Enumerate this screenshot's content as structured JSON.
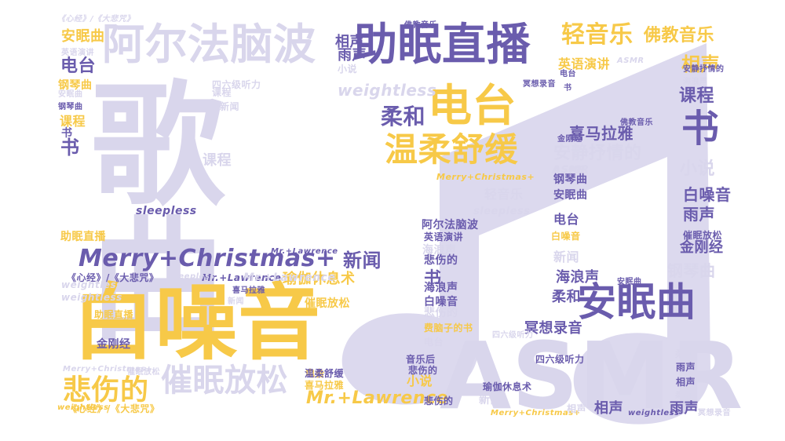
{
  "palette": {
    "purple": "#6a5cad",
    "yellow": "#f7c948",
    "lavender": "#d9d6ec",
    "note": "#dcd9ee"
  },
  "background_icon": "music-note-icon",
  "words": [
    {
      "t": "歌曲",
      "c": "lavender"
    },
    {
      "t": "白噪音",
      "c": "yellow"
    },
    {
      "t": "ASMR",
      "c": "lavender"
    },
    {
      "t": "助眠直播",
      "c": "purple"
    },
    {
      "t": "阿尔法脑波",
      "c": "lavender"
    },
    {
      "t": "电台",
      "c": "yellow"
    },
    {
      "t": "温柔舒缓",
      "c": "yellow"
    },
    {
      "t": "安眠曲",
      "c": "purple"
    },
    {
      "t": "Merry+Christmas+",
      "c": "purple"
    },
    {
      "t": "催眠放松",
      "c": "lavender"
    },
    {
      "t": "悲伤的",
      "c": "yellow"
    },
    {
      "t": "轻音乐",
      "c": "yellow"
    },
    {
      "t": "佛教音乐",
      "c": "yellow"
    },
    {
      "t": "柔和",
      "c": "purple"
    },
    {
      "t": "书",
      "c": "purple"
    },
    {
      "t": "相声",
      "c": "yellow"
    },
    {
      "t": "课程",
      "c": "purple"
    },
    {
      "t": "Mr.+Lawrence",
      "c": "yellow"
    },
    {
      "t": "新闻",
      "c": "purple"
    },
    {
      "t": "安静抒情的",
      "c": "lavender"
    },
    {
      "t": "喜马拉雅",
      "c": "purple"
    },
    {
      "t": "小说",
      "c": "lavender"
    },
    {
      "t": "白噪音",
      "c": "purple"
    },
    {
      "t": "雨声",
      "c": "purple"
    },
    {
      "t": "金刚经",
      "c": "purple"
    },
    {
      "t": "钢琴曲",
      "c": "lavender"
    },
    {
      "t": "weightless",
      "c": "lavender"
    },
    {
      "t": "电台",
      "c": "purple"
    },
    {
      "t": "安眠曲",
      "c": "yellow"
    },
    {
      "t": "课程",
      "c": "lavender"
    },
    {
      "t": "助眠直播",
      "c": "yellow"
    },
    {
      "t": "书",
      "c": "purple"
    },
    {
      "t": "瑜伽休息术",
      "c": "yellow"
    },
    {
      "t": "海浪声",
      "c": "purple"
    },
    {
      "t": "柔和",
      "c": "purple"
    },
    {
      "t": "冥想录音",
      "c": "purple"
    },
    {
      "t": "雨声",
      "c": "purple"
    },
    {
      "t": "相声",
      "c": "purple"
    },
    {
      "t": "英语演讲",
      "c": "yellow"
    },
    {
      "t": "ASMR",
      "c": "lavender"
    },
    {
      "t": "阿尔法脑波",
      "c": "purple"
    },
    {
      "t": "sleepless",
      "c": "purple"
    },
    {
      "t": "《心经》/《大悲咒》",
      "c": "purple"
    },
    {
      "t": "Mr.+Lawrence",
      "c": "purple"
    },
    {
      "t": "小说",
      "c": "yellow"
    },
    {
      "t": "悲伤的",
      "c": "purple"
    },
    {
      "t": "书",
      "c": "purple"
    },
    {
      "t": "weightless",
      "c": "lavender"
    },
    {
      "t": "新闻",
      "c": "lavender"
    },
    {
      "t": "四六级听力",
      "c": "lavender"
    },
    {
      "t": "费脑子的书",
      "c": "lavender"
    },
    {
      "t": "钢琴曲",
      "c": "purple"
    },
    {
      "t": "安眠曲",
      "c": "purple"
    },
    {
      "t": "书",
      "c": "purple"
    },
    {
      "t": "电台",
      "c": "purple"
    },
    {
      "t": "课程",
      "c": "yellow"
    },
    {
      "t": "雨声",
      "c": "purple"
    },
    {
      "t": "相声",
      "c": "purple"
    },
    {
      "t": "轻音乐",
      "c": "lavender"
    },
    {
      "t": "金刚经",
      "c": "purple"
    },
    {
      "t": "《心经》/《大悲咒》",
      "c": "lavender"
    },
    {
      "t": "催眠放松",
      "c": "yellow"
    },
    {
      "t": "weightless",
      "c": "yellow"
    },
    {
      "t": "Merry+Christmas+",
      "c": "yellow"
    },
    {
      "t": "ASMR",
      "c": "lavender"
    },
    {
      "t": "sleepless",
      "c": "lavender"
    },
    {
      "t": "钢琴曲",
      "c": "yellow"
    },
    {
      "t": "安眠曲",
      "c": "lavender"
    },
    {
      "t": "海浪声",
      "c": "lavender"
    },
    {
      "t": "电台",
      "c": "yellow"
    },
    {
      "t": "白噪音",
      "c": "purple"
    },
    {
      "t": "新闻",
      "c": "lavender"
    },
    {
      "t": "海浪声",
      "c": "purple"
    },
    {
      "t": "白噪音",
      "c": "yellow"
    },
    {
      "t": "悲伤的",
      "c": "lavender"
    },
    {
      "t": "费脑子的书",
      "c": "yellow"
    },
    {
      "t": "电台",
      "c": "lavender"
    },
    {
      "t": "音乐后",
      "c": "purple"
    },
    {
      "t": "悲伤的",
      "c": "purple"
    },
    {
      "t": "四六级听力",
      "c": "purple"
    },
    {
      "t": "瑜伽休息术",
      "c": "purple"
    },
    {
      "t": "温柔舒缓",
      "c": "purple"
    },
    {
      "t": "喜马拉雅",
      "c": "yellow"
    },
    {
      "t": "新闻",
      "c": "lavender"
    },
    {
      "t": "Merry+Christmas+",
      "c": "yellow"
    },
    {
      "t": "相声",
      "c": "purple"
    },
    {
      "t": "雨声",
      "c": "purple"
    },
    {
      "t": "weightless",
      "c": "purple"
    },
    {
      "t": "柔和",
      "c": "lavender"
    },
    {
      "t": "冥想录音",
      "c": "purple"
    },
    {
      "t": "金刚经",
      "c": "purple"
    },
    {
      "t": "助眠直播",
      "c": "yellow"
    },
    {
      "t": "Mr.+Lawrence",
      "c": "lavender"
    },
    {
      "t": "催眠放松",
      "c": "purple"
    },
    {
      "t": "佛教音乐",
      "c": "purple"
    },
    {
      "t": "冥想录音",
      "c": "lavender"
    },
    {
      "t": "英语演讲",
      "c": "purple"
    },
    {
      "t": "柔和",
      "c": "lavender"
    },
    {
      "t": "海浪声",
      "c": "lavender"
    },
    {
      "t": "电台",
      "c": "purple"
    },
    {
      "t": "钢琴曲",
      "c": "purple"
    },
    {
      "t": "安眠曲",
      "c": "purple"
    },
    {
      "t": "课程",
      "c": "lavender"
    },
    {
      "t": "书",
      "c": "purple"
    },
    {
      "t": "《心经》/《大悲咒》",
      "c": "yellow"
    },
    {
      "t": "Merry+Christmas+",
      "c": "lavender"
    },
    {
      "t": "Mr.+Lawrence",
      "c": "purple"
    },
    {
      "t": "佛教音乐",
      "c": "purple"
    },
    {
      "t": "英语演讲",
      "c": "lavender"
    },
    {
      "t": "四六级听力",
      "c": "lavender"
    },
    {
      "t": "安静抒情的",
      "c": "purple"
    },
    {
      "t": "ASMR",
      "c": "lavender"
    },
    {
      "t": "催眠放松",
      "c": "lavender"
    },
    {
      "t": "喜马拉雅",
      "c": "purple"
    },
    {
      "t": "sleepless",
      "c": "lavender"
    },
    {
      "t": "新闻",
      "c": "lavender"
    },
    {
      "t": "相声",
      "c": "lavender"
    },
    {
      "t": "小说",
      "c": "lavender"
    },
    {
      "t": "悲伤的",
      "c": "purple"
    },
    {
      "t": "weightless",
      "c": "lavender"
    }
  ]
}
